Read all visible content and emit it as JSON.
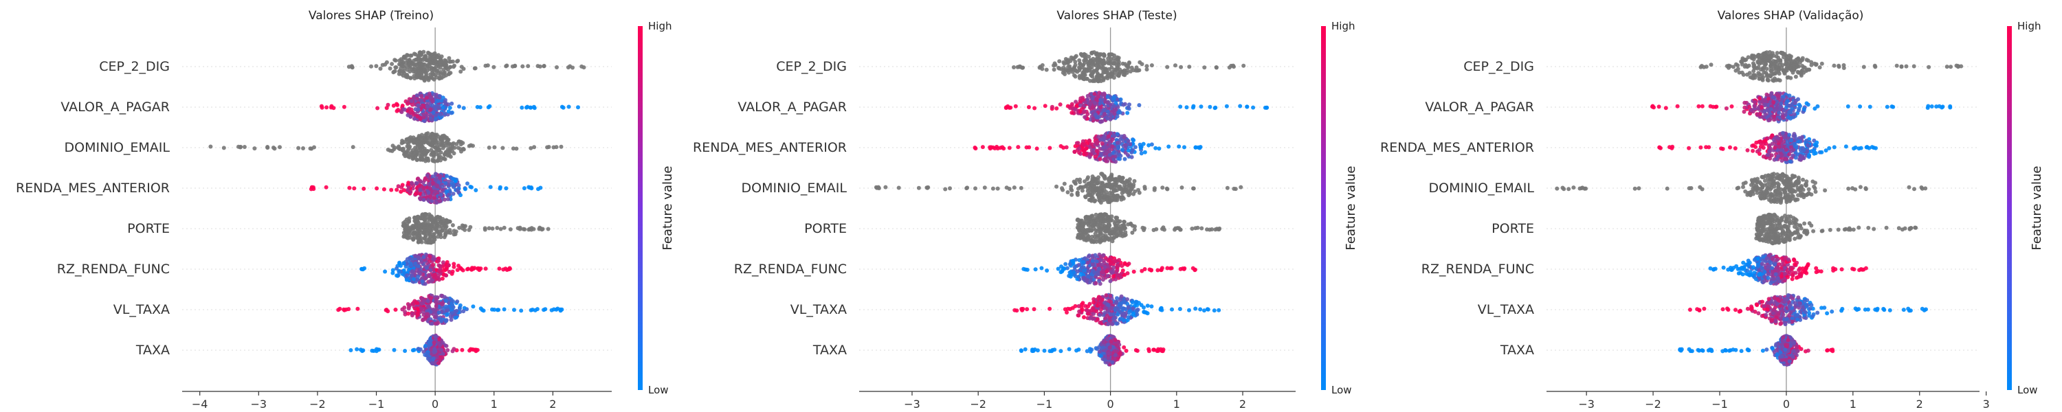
{
  "figure": {
    "colors": {
      "high": "#ff0052",
      "low": "#008bfb",
      "gray": "#777777"
    }
  },
  "chart_data": [
    {
      "type": "scatter",
      "title": "Valores SHAP (Treino)",
      "xlabel": "",
      "ylabel": "",
      "xlim": [
        -4.3,
        3.0
      ],
      "xticks": [
        -4,
        -3,
        -2,
        -1,
        0,
        1,
        2
      ],
      "features": [
        "CEP_2_DIG",
        "VALOR_A_PAGAR",
        "DOMINIO_EMAIL",
        "RENDA_MES_ANTERIOR",
        "PORTE",
        "RZ_RENDA_FUNC",
        "VL_TAXA",
        "TAXA"
      ],
      "colorbar": {
        "title": "Feature value",
        "high": "High",
        "low": "Low"
      },
      "series": [
        {
          "feature": "CEP_2_DIG",
          "colored": false,
          "min": -1.55,
          "max": 2.6,
          "peak": -0.2,
          "spread": 0.55,
          "low_side": "none"
        },
        {
          "feature": "VALOR_A_PAGAR",
          "colored": true,
          "min": -1.95,
          "max": 2.45,
          "peak": -0.15,
          "spread": 0.4,
          "low_side": "right"
        },
        {
          "feature": "DOMINIO_EMAIL",
          "colored": false,
          "min": -3.85,
          "max": 2.2,
          "peak": -0.1,
          "spread": 0.5,
          "low_side": "none"
        },
        {
          "feature": "RENDA_MES_ANTERIOR",
          "colored": true,
          "min": -2.2,
          "max": 1.8,
          "peak": 0.0,
          "spread": 0.45,
          "low_side": "right"
        },
        {
          "feature": "PORTE",
          "colored": false,
          "min": -0.55,
          "max": 2.0,
          "peak": -0.15,
          "spread": 0.45,
          "low_side": "none"
        },
        {
          "feature": "RZ_RENDA_FUNC",
          "colored": true,
          "min": -1.3,
          "max": 1.3,
          "peak": -0.2,
          "spread": 0.45,
          "low_side": "left"
        },
        {
          "feature": "VL_TAXA",
          "colored": true,
          "min": -1.65,
          "max": 2.2,
          "peak": 0.0,
          "spread": 0.45,
          "low_side": "right"
        },
        {
          "feature": "TAXA",
          "colored": true,
          "min": -1.45,
          "max": 0.75,
          "peak": 0.0,
          "spread": 0.15,
          "low_side": "left"
        }
      ]
    },
    {
      "type": "scatter",
      "title": "Valores SHAP (Teste)",
      "xlabel": "",
      "ylabel": "",
      "xlim": [
        -3.8,
        2.8
      ],
      "xticks": [
        -3,
        -2,
        -1,
        0,
        1,
        2
      ],
      "features": [
        "CEP_2_DIG",
        "VALOR_A_PAGAR",
        "RENDA_MES_ANTERIOR",
        "DOMINIO_EMAIL",
        "PORTE",
        "RZ_RENDA_FUNC",
        "VL_TAXA",
        "TAXA"
      ],
      "colorbar": {
        "title": "Feature value",
        "high": "High",
        "low": "Low"
      },
      "series": [
        {
          "feature": "CEP_2_DIG",
          "colored": false,
          "min": -1.55,
          "max": 2.15,
          "peak": -0.2,
          "spread": 0.55,
          "low_side": "none"
        },
        {
          "feature": "VALOR_A_PAGAR",
          "colored": true,
          "min": -1.65,
          "max": 2.45,
          "peak": -0.15,
          "spread": 0.4,
          "low_side": "right"
        },
        {
          "feature": "RENDA_MES_ANTERIOR",
          "colored": true,
          "min": -2.05,
          "max": 1.4,
          "peak": 0.0,
          "spread": 0.45,
          "low_side": "right"
        },
        {
          "feature": "DOMINIO_EMAIL",
          "colored": false,
          "min": -3.6,
          "max": 2.0,
          "peak": -0.1,
          "spread": 0.5,
          "low_side": "none"
        },
        {
          "feature": "PORTE",
          "colored": false,
          "min": -0.5,
          "max": 1.65,
          "peak": -0.15,
          "spread": 0.45,
          "low_side": "none"
        },
        {
          "feature": "RZ_RENDA_FUNC",
          "colored": true,
          "min": -1.35,
          "max": 1.3,
          "peak": -0.2,
          "spread": 0.45,
          "low_side": "left"
        },
        {
          "feature": "VL_TAXA",
          "colored": true,
          "min": -1.45,
          "max": 1.65,
          "peak": 0.0,
          "spread": 0.45,
          "low_side": "right"
        },
        {
          "feature": "TAXA",
          "colored": true,
          "min": -1.35,
          "max": 0.8,
          "peak": 0.0,
          "spread": 0.15,
          "low_side": "left"
        }
      ]
    },
    {
      "type": "scatter",
      "title": "Valores SHAP (Validação)",
      "xlabel": "",
      "ylabel": "",
      "xlim": [
        -3.6,
        2.9
      ],
      "xticks": [
        -3,
        -2,
        -1,
        0,
        1,
        2,
        3
      ],
      "features": [
        "CEP_2_DIG",
        "VALOR_A_PAGAR",
        "RENDA_MES_ANTERIOR",
        "DOMINIO_EMAIL",
        "PORTE",
        "RZ_RENDA_FUNC",
        "VL_TAXA",
        "TAXA"
      ],
      "colorbar": {
        "title": "Feature value",
        "high": "High",
        "low": "Low"
      },
      "series": [
        {
          "feature": "CEP_2_DIG",
          "colored": false,
          "min": -1.35,
          "max": 2.7,
          "peak": -0.2,
          "spread": 0.55,
          "low_side": "none"
        },
        {
          "feature": "VALOR_A_PAGAR",
          "colored": true,
          "min": -2.05,
          "max": 2.5,
          "peak": -0.15,
          "spread": 0.4,
          "low_side": "right"
        },
        {
          "feature": "RENDA_MES_ANTERIOR",
          "colored": true,
          "min": -1.95,
          "max": 1.4,
          "peak": 0.0,
          "spread": 0.45,
          "low_side": "right"
        },
        {
          "feature": "DOMINIO_EMAIL",
          "colored": false,
          "min": -3.45,
          "max": 2.15,
          "peak": -0.1,
          "spread": 0.5,
          "low_side": "none"
        },
        {
          "feature": "PORTE",
          "colored": false,
          "min": -0.45,
          "max": 1.95,
          "peak": -0.15,
          "spread": 0.45,
          "low_side": "none"
        },
        {
          "feature": "RZ_RENDA_FUNC",
          "colored": true,
          "min": -1.2,
          "max": 1.2,
          "peak": -0.2,
          "spread": 0.45,
          "low_side": "left"
        },
        {
          "feature": "VL_TAXA",
          "colored": true,
          "min": -1.45,
          "max": 2.15,
          "peak": 0.0,
          "spread": 0.45,
          "low_side": "right"
        },
        {
          "feature": "TAXA",
          "colored": true,
          "min": -1.6,
          "max": 0.7,
          "peak": 0.0,
          "spread": 0.15,
          "low_side": "left"
        }
      ]
    }
  ]
}
